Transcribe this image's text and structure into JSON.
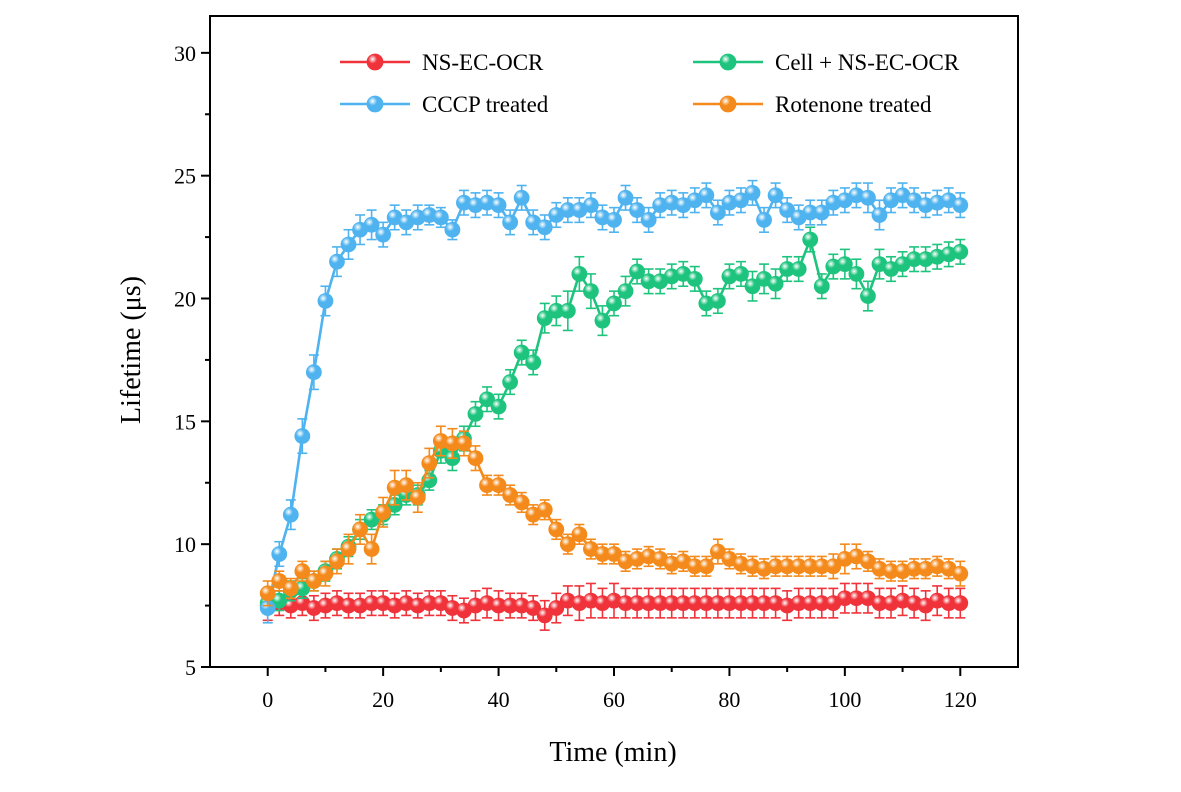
{
  "chart_data": {
    "type": "line",
    "title": "",
    "xlabel": "Time (min)",
    "ylabel": "Lifetime (μs)",
    "xlim": [
      -10,
      130
    ],
    "ylim": [
      5,
      31.5
    ],
    "xticks": [
      0,
      20,
      40,
      60,
      80,
      100,
      120
    ],
    "yticks": [
      5,
      10,
      15,
      20,
      25,
      30
    ],
    "grid": false,
    "legend_placement": "top",
    "x": [
      0,
      2,
      4,
      6,
      8,
      10,
      12,
      14,
      16,
      18,
      20,
      22,
      24,
      26,
      28,
      30,
      32,
      34,
      36,
      38,
      40,
      42,
      44,
      46,
      48,
      50,
      52,
      54,
      56,
      58,
      60,
      62,
      64,
      66,
      68,
      70,
      72,
      74,
      76,
      78,
      80,
      82,
      84,
      86,
      88,
      90,
      92,
      94,
      96,
      98,
      100,
      102,
      104,
      106,
      108,
      110,
      112,
      114,
      116,
      118,
      120
    ],
    "series": [
      {
        "name": "NS-EC-OCR",
        "color": "#f0323a",
        "values": [
          7.5,
          7.6,
          7.5,
          7.6,
          7.4,
          7.5,
          7.6,
          7.5,
          7.5,
          7.6,
          7.6,
          7.5,
          7.6,
          7.5,
          7.6,
          7.6,
          7.4,
          7.3,
          7.5,
          7.6,
          7.5,
          7.5,
          7.5,
          7.4,
          7.1,
          7.4,
          7.7,
          7.6,
          7.7,
          7.6,
          7.7,
          7.6,
          7.6,
          7.6,
          7.6,
          7.6,
          7.6,
          7.6,
          7.6,
          7.6,
          7.6,
          7.6,
          7.6,
          7.6,
          7.6,
          7.5,
          7.6,
          7.6,
          7.6,
          7.6,
          7.8,
          7.8,
          7.8,
          7.6,
          7.6,
          7.7,
          7.6,
          7.5,
          7.7,
          7.6,
          7.6
        ],
        "errors": [
          0.6,
          0.5,
          0.5,
          0.5,
          0.5,
          0.5,
          0.5,
          0.5,
          0.5,
          0.5,
          0.5,
          0.5,
          0.5,
          0.5,
          0.5,
          0.5,
          0.5,
          0.5,
          0.6,
          0.6,
          0.6,
          0.5,
          0.5,
          0.5,
          0.6,
          0.6,
          0.6,
          0.7,
          0.7,
          0.6,
          0.7,
          0.6,
          0.6,
          0.6,
          0.6,
          0.6,
          0.6,
          0.6,
          0.6,
          0.6,
          0.6,
          0.6,
          0.6,
          0.6,
          0.6,
          0.6,
          0.6,
          0.6,
          0.6,
          0.6,
          0.6,
          0.6,
          0.6,
          0.6,
          0.6,
          0.6,
          0.6,
          0.6,
          0.6,
          0.6,
          0.6
        ]
      },
      {
        "name": "Cell + NS-EC-OCR",
        "color": "#1ec47e",
        "values": [
          7.6,
          7.7,
          8.1,
          8.2,
          8.5,
          8.9,
          9.4,
          9.9,
          10.6,
          11.0,
          11.2,
          11.6,
          12.0,
          12.0,
          12.6,
          13.8,
          13.5,
          14.3,
          15.3,
          15.9,
          15.6,
          16.6,
          17.8,
          17.4,
          19.2,
          19.5,
          19.5,
          21.0,
          20.3,
          19.1,
          19.8,
          20.3,
          21.1,
          20.7,
          20.7,
          20.9,
          21.0,
          20.8,
          19.8,
          19.9,
          20.9,
          21.0,
          20.5,
          20.8,
          20.6,
          21.2,
          21.2,
          22.4,
          20.5,
          21.3,
          21.4,
          21.0,
          20.1,
          21.4,
          21.2,
          21.4,
          21.6,
          21.6,
          21.7,
          21.8,
          21.9
        ],
        "errors": [
          0.4,
          0.4,
          0.4,
          0.4,
          0.4,
          0.4,
          0.4,
          0.4,
          0.4,
          0.4,
          0.4,
          0.4,
          0.4,
          0.4,
          0.4,
          0.5,
          0.5,
          0.5,
          0.5,
          0.5,
          0.5,
          0.5,
          0.5,
          0.5,
          0.6,
          0.6,
          0.8,
          0.7,
          0.7,
          0.6,
          0.5,
          0.6,
          0.5,
          0.5,
          0.5,
          0.5,
          0.5,
          0.5,
          0.5,
          0.5,
          0.5,
          0.5,
          0.6,
          0.6,
          0.6,
          0.5,
          0.5,
          0.5,
          0.5,
          0.5,
          0.6,
          0.6,
          0.6,
          0.6,
          0.5,
          0.5,
          0.5,
          0.5,
          0.5,
          0.5,
          0.5
        ]
      },
      {
        "name": "CCCP treated",
        "color": "#4fb3ef",
        "values": [
          7.4,
          9.6,
          11.2,
          14.4,
          17.0,
          19.9,
          21.5,
          22.2,
          22.8,
          23.0,
          22.6,
          23.3,
          23.1,
          23.3,
          23.4,
          23.3,
          22.8,
          23.9,
          23.8,
          23.9,
          23.8,
          23.1,
          24.1,
          23.1,
          22.9,
          23.4,
          23.6,
          23.6,
          23.8,
          23.3,
          23.2,
          24.1,
          23.6,
          23.2,
          23.8,
          23.9,
          23.8,
          24.0,
          24.2,
          23.5,
          23.9,
          24.0,
          24.3,
          23.2,
          24.2,
          23.6,
          23.3,
          23.5,
          23.5,
          23.9,
          24.0,
          24.2,
          24.1,
          23.4,
          24.0,
          24.2,
          24.0,
          23.8,
          23.9,
          24.0,
          23.8
        ],
        "errors": [
          0.6,
          0.5,
          0.6,
          0.7,
          0.7,
          0.6,
          0.6,
          0.6,
          0.6,
          0.6,
          0.5,
          0.5,
          0.5,
          0.5,
          0.4,
          0.4,
          0.4,
          0.5,
          0.5,
          0.5,
          0.5,
          0.5,
          0.5,
          0.5,
          0.5,
          0.5,
          0.5,
          0.5,
          0.5,
          0.5,
          0.5,
          0.5,
          0.5,
          0.5,
          0.5,
          0.5,
          0.5,
          0.5,
          0.5,
          0.5,
          0.5,
          0.5,
          0.5,
          0.5,
          0.5,
          0.5,
          0.5,
          0.5,
          0.5,
          0.5,
          0.5,
          0.5,
          0.6,
          0.6,
          0.5,
          0.5,
          0.5,
          0.5,
          0.5,
          0.5,
          0.5
        ]
      },
      {
        "name": "Rotenone treated",
        "color": "#f48a1b",
        "values": [
          8.0,
          8.5,
          8.2,
          8.9,
          8.5,
          8.8,
          9.3,
          9.8,
          10.6,
          9.8,
          11.3,
          12.3,
          12.4,
          11.9,
          13.3,
          14.2,
          14.1,
          14.1,
          13.5,
          12.4,
          12.4,
          12.0,
          11.7,
          11.2,
          11.4,
          10.6,
          10.0,
          10.4,
          9.8,
          9.6,
          9.6,
          9.3,
          9.4,
          9.5,
          9.4,
          9.2,
          9.3,
          9.1,
          9.1,
          9.7,
          9.4,
          9.2,
          9.1,
          9.0,
          9.1,
          9.1,
          9.1,
          9.1,
          9.1,
          9.1,
          9.4,
          9.5,
          9.3,
          9.0,
          8.9,
          8.9,
          9.0,
          9.0,
          9.1,
          9.0,
          8.8
        ],
        "errors": [
          0.5,
          0.4,
          0.4,
          0.4,
          0.4,
          0.5,
          0.5,
          0.6,
          0.6,
          0.6,
          0.6,
          0.7,
          0.6,
          0.6,
          0.6,
          0.6,
          0.6,
          0.5,
          0.5,
          0.4,
          0.4,
          0.4,
          0.4,
          0.4,
          0.4,
          0.4,
          0.4,
          0.4,
          0.4,
          0.4,
          0.4,
          0.4,
          0.4,
          0.4,
          0.4,
          0.4,
          0.4,
          0.4,
          0.4,
          0.5,
          0.4,
          0.4,
          0.4,
          0.4,
          0.4,
          0.4,
          0.4,
          0.4,
          0.4,
          0.5,
          0.6,
          0.5,
          0.4,
          0.4,
          0.4,
          0.4,
          0.4,
          0.4,
          0.4,
          0.4,
          0.5
        ]
      }
    ]
  }
}
